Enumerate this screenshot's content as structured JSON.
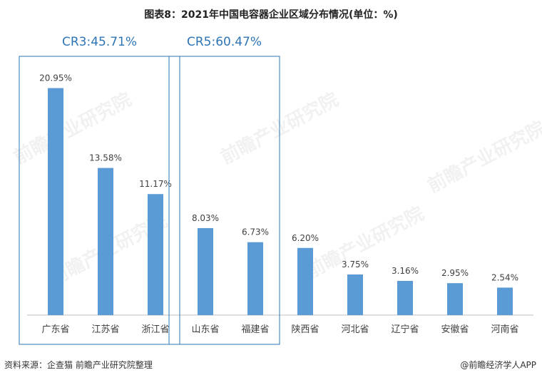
{
  "title": "图表8：2021年中国电容器企业区域分布情况(单位：%)",
  "source": "资料来源：企查猫 前瞻产业研究院整理",
  "brand": "@前瞻经济学人APP",
  "watermark": "前瞻产业研究院",
  "colors": {
    "bar": "#5b9bd5",
    "box": "#2e75b6",
    "annotation": "#2e75b6",
    "axis": "#bfbfbf"
  },
  "chart_data": {
    "type": "bar",
    "categories": [
      "广东省",
      "江苏省",
      "浙江省",
      "山东省",
      "福建省",
      "陕西省",
      "河北省",
      "辽宁省",
      "安徽省",
      "河南省"
    ],
    "values": [
      20.95,
      13.58,
      11.17,
      8.03,
      6.73,
      6.2,
      3.75,
      3.16,
      2.95,
      2.54
    ],
    "value_labels": [
      "20.95%",
      "13.58%",
      "11.17%",
      "8.03%",
      "6.73%",
      "6.20%",
      "3.75%",
      "3.16%",
      "2.95%",
      "2.54%"
    ],
    "title": "图表8：2021年中国电容器企业区域分布情况(单位：%)",
    "ylim": [
      0,
      22.5
    ],
    "grid": false,
    "annotations": [
      {
        "text": "CR3:45.71%",
        "categories": [
          "广东省",
          "江苏省",
          "浙江省"
        ]
      },
      {
        "text": "CR5:60.47%",
        "categories": [
          "山东省",
          "福建省"
        ]
      }
    ]
  }
}
